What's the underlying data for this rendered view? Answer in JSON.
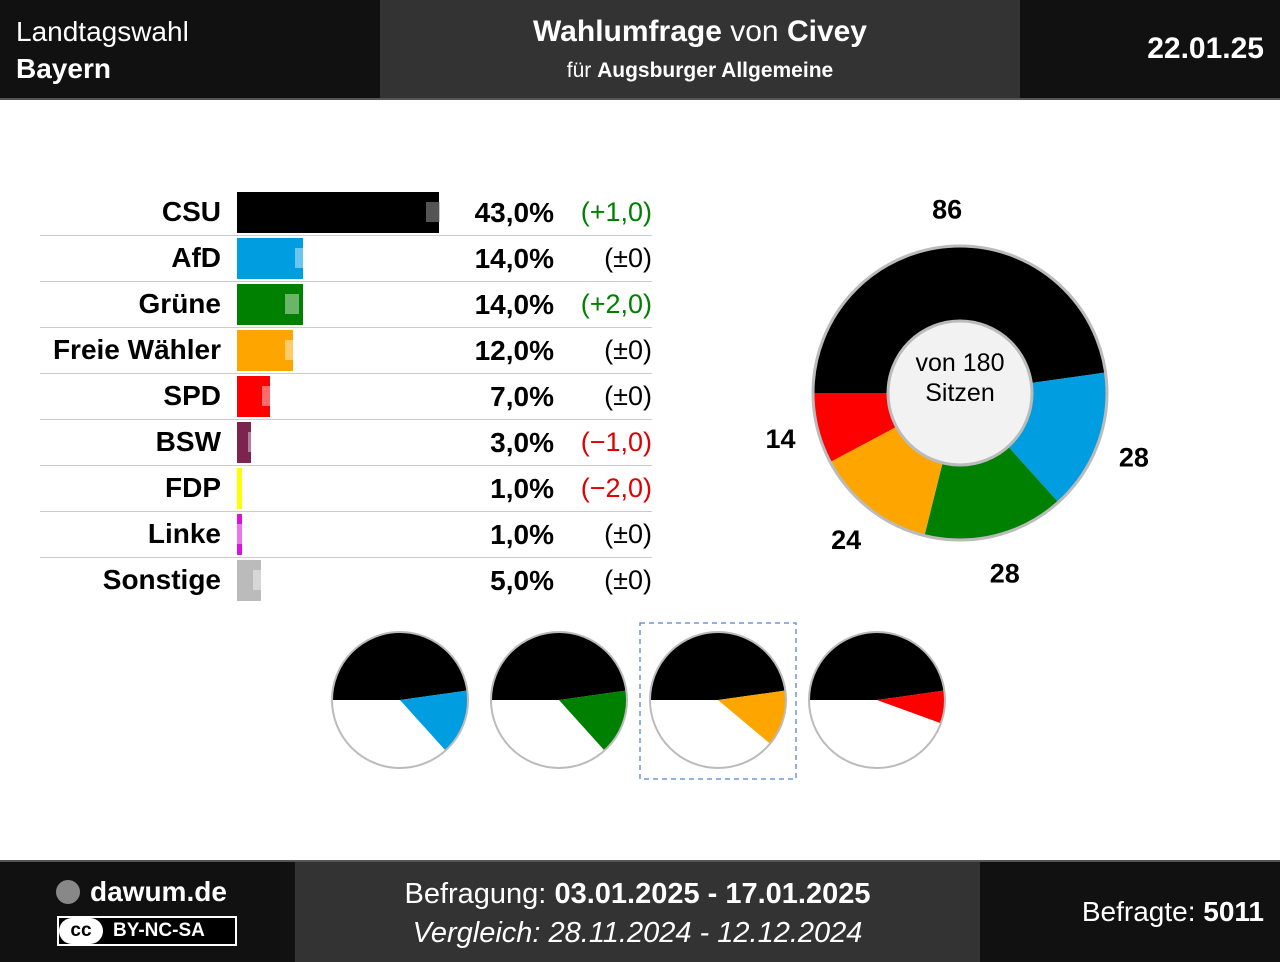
{
  "header": {
    "election": "Landtagswahl",
    "region": "Bayern",
    "title_prefix": "Wahlumfrage",
    "title_mid": " von ",
    "pollster": "Civey",
    "client_prefix": "für ",
    "client": "Augsburger Allgemeine",
    "date": "22.01.25"
  },
  "chart_data": [
    {
      "type": "bar",
      "categories": [
        "CSU",
        "AfD",
        "Grüne",
        "Freie Wähler",
        "SPD",
        "BSW",
        "FDP",
        "Linke",
        "Sonstige"
      ],
      "values": [
        43.0,
        14.0,
        14.0,
        12.0,
        7.0,
        3.0,
        1.0,
        1.0,
        5.0
      ],
      "previous_values": [
        42.0,
        14.0,
        12.0,
        12.0,
        7.0,
        4.0,
        3.0,
        1.0,
        5.0
      ],
      "value_labels": [
        "43,0%",
        "14,0%",
        "14,0%",
        "12,0%",
        "7,0%",
        "3,0%",
        "1,0%",
        "1,0%",
        "5,0%"
      ],
      "change_labels": [
        "(+1,0)",
        "(±0)",
        "(+2,0)",
        "(±0)",
        "(±0)",
        "(−1,0)",
        "(−2,0)",
        "(±0)",
        "(±0)"
      ],
      "change_direction": [
        "up",
        "none",
        "up",
        "none",
        "none",
        "down",
        "down",
        "none",
        "none"
      ],
      "colors": [
        "#000000",
        "#009ee0",
        "#008000",
        "#ffa500",
        "#ff0000",
        "#7b2450",
        "#ffff00",
        "#dd11dd",
        "#bbbbbb"
      ]
    },
    {
      "type": "pie",
      "style": "donut",
      "categories": [
        "CSU",
        "AfD",
        "Grüne",
        "Freie Wähler",
        "SPD"
      ],
      "values": [
        86,
        28,
        28,
        24,
        14
      ],
      "colors": [
        "#000000",
        "#009ee0",
        "#008000",
        "#ffa500",
        "#ff0000"
      ],
      "center_line1": "von 180",
      "center_line2": "Sitzen",
      "seat_labels": [
        "86",
        "28",
        "28",
        "24",
        "14"
      ]
    },
    {
      "type": "pie",
      "style": "coalition-semicircles",
      "total": 180,
      "coalitions": [
        {
          "parties": [
            "CSU",
            "AfD"
          ],
          "seats": [
            86,
            28
          ],
          "colors": [
            "#000000",
            "#009ee0"
          ],
          "highlighted": false
        },
        {
          "parties": [
            "CSU",
            "Grüne"
          ],
          "seats": [
            86,
            28
          ],
          "colors": [
            "#000000",
            "#008000"
          ],
          "highlighted": false
        },
        {
          "parties": [
            "CSU",
            "Freie Wähler"
          ],
          "seats": [
            86,
            24
          ],
          "colors": [
            "#000000",
            "#ffa500"
          ],
          "highlighted": true
        },
        {
          "parties": [
            "CSU",
            "SPD"
          ],
          "seats": [
            86,
            14
          ],
          "colors": [
            "#000000",
            "#ff0000"
          ],
          "highlighted": false
        }
      ]
    }
  ],
  "footer": {
    "site": "dawum.de",
    "license": "BY-NC-SA",
    "license_icon": "cc",
    "survey_label": "Befragung: ",
    "survey_period": "03.01.2025 - 17.01.2025",
    "compare_label": "Vergleich: ",
    "compare_period": "28.11.2024 - 12.12.2024",
    "respondents_label": "Befragte: ",
    "respondents": "5011"
  }
}
